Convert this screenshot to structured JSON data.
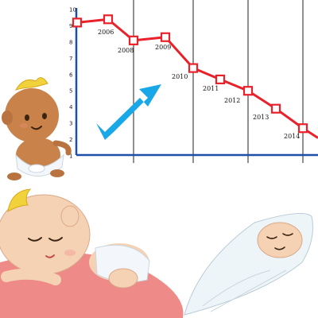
{
  "chart_data": {
    "type": "line",
    "title": "",
    "xlabel": "",
    "ylabel": "",
    "y_ticks": [
      "1",
      "2",
      "3",
      "4",
      "5",
      "6",
      "7",
      "8",
      "9",
      "10"
    ],
    "ylim": [
      1,
      10
    ],
    "grid": "vertical lines only",
    "series": [
      {
        "points": [
          {
            "x": "",
            "y": 9.2
          },
          {
            "x": "2006",
            "y": 9.4
          },
          {
            "x": "2008",
            "y": 8.1
          },
          {
            "x": "2009",
            "y": 8.3
          },
          {
            "x": "2010",
            "y": 6.4
          },
          {
            "x": "2011",
            "y": 5.7
          },
          {
            "x": "2012",
            "y": 5.0
          },
          {
            "x": "2013",
            "y": 3.9
          },
          {
            "x": "2014",
            "y": 2.7
          },
          {
            "x": "",
            "y": 2.1
          }
        ]
      }
    ]
  },
  "colors": {
    "line": "#e8212a",
    "marker_fill": "#ffffff",
    "axis": "#1c4fa8",
    "gridline": "#222222",
    "arrow": "#18a8e8",
    "skin_tan": "#c9824a",
    "skin_light": "#f6d2b4",
    "hair": "#f2d23a",
    "diaper": "#f3f7fb",
    "pillow": "#ee8a87",
    "swaddle": "#eef5f8"
  },
  "icons": {
    "arrow": "up-right-arrow-icon",
    "baby1": "sitting-baby-illustration",
    "baby2": "sleeping-baby-illustration",
    "baby3": "swaddled-baby-illustration"
  }
}
